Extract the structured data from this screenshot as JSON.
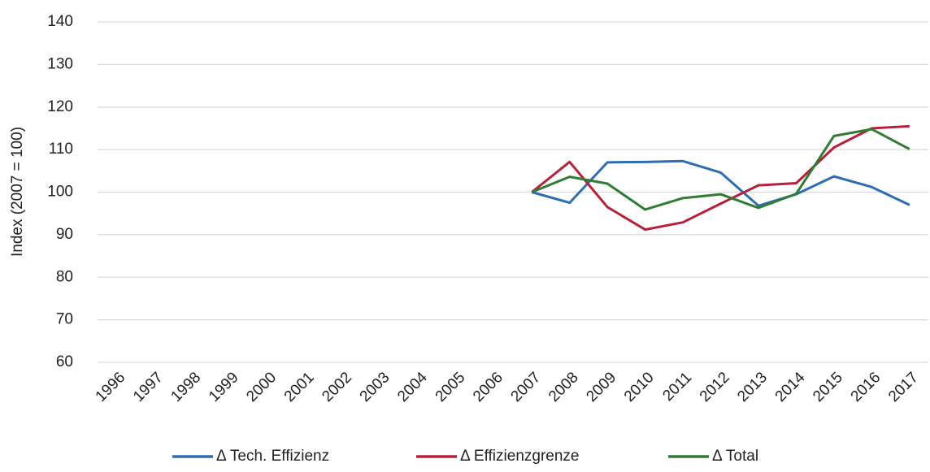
{
  "chart_data": {
    "type": "line",
    "y_label": "Index (2007 = 100)",
    "categories": [
      "1996",
      "1997",
      "1998",
      "1999",
      "2000",
      "2001",
      "2002",
      "2003",
      "2004",
      "2005",
      "2006",
      "2007",
      "2008",
      "2009",
      "2010",
      "2011",
      "2012",
      "2013",
      "2014",
      "2015",
      "2016",
      "2017"
    ],
    "series": [
      {
        "name": "Δ Tech. Effizienz",
        "color": "#2e6db4",
        "values": [
          null,
          null,
          null,
          null,
          null,
          null,
          null,
          null,
          null,
          null,
          null,
          100,
          97.5,
          107,
          107.1,
          107.3,
          104.6,
          96.8,
          99.5,
          103.7,
          101.2,
          97
        ]
      },
      {
        "name": "Δ Effizienzgrenze",
        "color": "#b7203a",
        "values": [
          null,
          null,
          null,
          null,
          null,
          null,
          null,
          null,
          null,
          null,
          null,
          100,
          107.1,
          96.5,
          91.2,
          92.9,
          97.3,
          101.6,
          102.1,
          110.5,
          115,
          115.5
        ]
      },
      {
        "name": "Δ Total",
        "color": "#2f7d32",
        "values": [
          null,
          null,
          null,
          null,
          null,
          null,
          null,
          null,
          null,
          null,
          null,
          100,
          103.6,
          102,
          95.9,
          98.6,
          99.5,
          96.3,
          99.6,
          113.2,
          114.8,
          110.1
        ]
      }
    ],
    "ylim": [
      60,
      140
    ],
    "yticks": [
      60,
      70,
      80,
      90,
      100,
      110,
      120,
      130,
      140
    ],
    "grid": true,
    "legend": "bottom"
  }
}
